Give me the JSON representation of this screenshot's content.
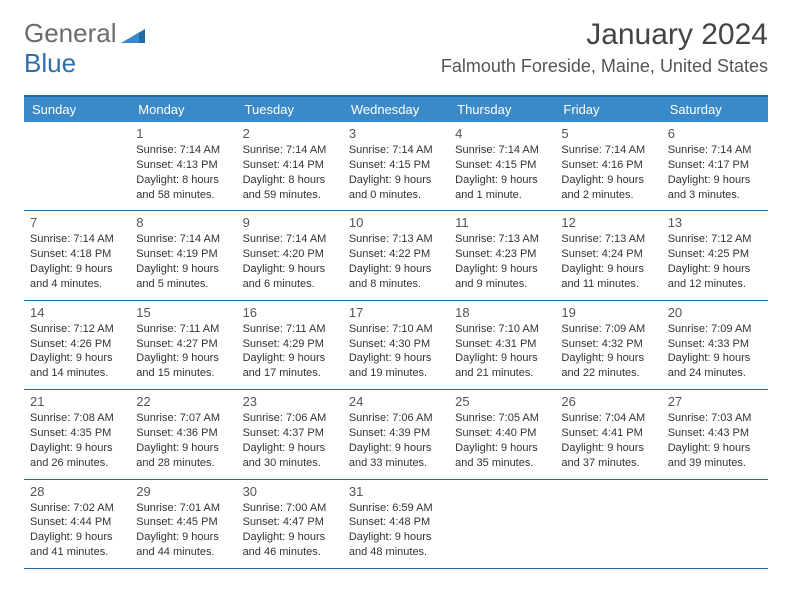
{
  "logo": {
    "part1": "General",
    "part2": "Blue"
  },
  "title": "January 2024",
  "location": "Falmouth Foreside, Maine, United States",
  "colors": {
    "header_bg": "#3a8ac9",
    "header_text": "#ffffff",
    "border": "#1f6aa8",
    "body_text": "#333333",
    "day_number": "#555555",
    "logo_gray": "#6b6b6b",
    "logo_blue": "#2f6fa8",
    "page_bg": "#ffffff"
  },
  "fonts": {
    "title_size": 30,
    "location_size": 18,
    "header_size": 13,
    "day_size": 13,
    "cell_size": 11
  },
  "layout": {
    "columns": 7,
    "rows": 5
  },
  "days_of_week": [
    "Sunday",
    "Monday",
    "Tuesday",
    "Wednesday",
    "Thursday",
    "Friday",
    "Saturday"
  ],
  "weeks": [
    [
      null,
      {
        "n": "1",
        "sr": "Sunrise: 7:14 AM",
        "ss": "Sunset: 4:13 PM",
        "d1": "Daylight: 8 hours",
        "d2": "and 58 minutes."
      },
      {
        "n": "2",
        "sr": "Sunrise: 7:14 AM",
        "ss": "Sunset: 4:14 PM",
        "d1": "Daylight: 8 hours",
        "d2": "and 59 minutes."
      },
      {
        "n": "3",
        "sr": "Sunrise: 7:14 AM",
        "ss": "Sunset: 4:15 PM",
        "d1": "Daylight: 9 hours",
        "d2": "and 0 minutes."
      },
      {
        "n": "4",
        "sr": "Sunrise: 7:14 AM",
        "ss": "Sunset: 4:15 PM",
        "d1": "Daylight: 9 hours",
        "d2": "and 1 minute."
      },
      {
        "n": "5",
        "sr": "Sunrise: 7:14 AM",
        "ss": "Sunset: 4:16 PM",
        "d1": "Daylight: 9 hours",
        "d2": "and 2 minutes."
      },
      {
        "n": "6",
        "sr": "Sunrise: 7:14 AM",
        "ss": "Sunset: 4:17 PM",
        "d1": "Daylight: 9 hours",
        "d2": "and 3 minutes."
      }
    ],
    [
      {
        "n": "7",
        "sr": "Sunrise: 7:14 AM",
        "ss": "Sunset: 4:18 PM",
        "d1": "Daylight: 9 hours",
        "d2": "and 4 minutes."
      },
      {
        "n": "8",
        "sr": "Sunrise: 7:14 AM",
        "ss": "Sunset: 4:19 PM",
        "d1": "Daylight: 9 hours",
        "d2": "and 5 minutes."
      },
      {
        "n": "9",
        "sr": "Sunrise: 7:14 AM",
        "ss": "Sunset: 4:20 PM",
        "d1": "Daylight: 9 hours",
        "d2": "and 6 minutes."
      },
      {
        "n": "10",
        "sr": "Sunrise: 7:13 AM",
        "ss": "Sunset: 4:22 PM",
        "d1": "Daylight: 9 hours",
        "d2": "and 8 minutes."
      },
      {
        "n": "11",
        "sr": "Sunrise: 7:13 AM",
        "ss": "Sunset: 4:23 PM",
        "d1": "Daylight: 9 hours",
        "d2": "and 9 minutes."
      },
      {
        "n": "12",
        "sr": "Sunrise: 7:13 AM",
        "ss": "Sunset: 4:24 PM",
        "d1": "Daylight: 9 hours",
        "d2": "and 11 minutes."
      },
      {
        "n": "13",
        "sr": "Sunrise: 7:12 AM",
        "ss": "Sunset: 4:25 PM",
        "d1": "Daylight: 9 hours",
        "d2": "and 12 minutes."
      }
    ],
    [
      {
        "n": "14",
        "sr": "Sunrise: 7:12 AM",
        "ss": "Sunset: 4:26 PM",
        "d1": "Daylight: 9 hours",
        "d2": "and 14 minutes."
      },
      {
        "n": "15",
        "sr": "Sunrise: 7:11 AM",
        "ss": "Sunset: 4:27 PM",
        "d1": "Daylight: 9 hours",
        "d2": "and 15 minutes."
      },
      {
        "n": "16",
        "sr": "Sunrise: 7:11 AM",
        "ss": "Sunset: 4:29 PM",
        "d1": "Daylight: 9 hours",
        "d2": "and 17 minutes."
      },
      {
        "n": "17",
        "sr": "Sunrise: 7:10 AM",
        "ss": "Sunset: 4:30 PM",
        "d1": "Daylight: 9 hours",
        "d2": "and 19 minutes."
      },
      {
        "n": "18",
        "sr": "Sunrise: 7:10 AM",
        "ss": "Sunset: 4:31 PM",
        "d1": "Daylight: 9 hours",
        "d2": "and 21 minutes."
      },
      {
        "n": "19",
        "sr": "Sunrise: 7:09 AM",
        "ss": "Sunset: 4:32 PM",
        "d1": "Daylight: 9 hours",
        "d2": "and 22 minutes."
      },
      {
        "n": "20",
        "sr": "Sunrise: 7:09 AM",
        "ss": "Sunset: 4:33 PM",
        "d1": "Daylight: 9 hours",
        "d2": "and 24 minutes."
      }
    ],
    [
      {
        "n": "21",
        "sr": "Sunrise: 7:08 AM",
        "ss": "Sunset: 4:35 PM",
        "d1": "Daylight: 9 hours",
        "d2": "and 26 minutes."
      },
      {
        "n": "22",
        "sr": "Sunrise: 7:07 AM",
        "ss": "Sunset: 4:36 PM",
        "d1": "Daylight: 9 hours",
        "d2": "and 28 minutes."
      },
      {
        "n": "23",
        "sr": "Sunrise: 7:06 AM",
        "ss": "Sunset: 4:37 PM",
        "d1": "Daylight: 9 hours",
        "d2": "and 30 minutes."
      },
      {
        "n": "24",
        "sr": "Sunrise: 7:06 AM",
        "ss": "Sunset: 4:39 PM",
        "d1": "Daylight: 9 hours",
        "d2": "and 33 minutes."
      },
      {
        "n": "25",
        "sr": "Sunrise: 7:05 AM",
        "ss": "Sunset: 4:40 PM",
        "d1": "Daylight: 9 hours",
        "d2": "and 35 minutes."
      },
      {
        "n": "26",
        "sr": "Sunrise: 7:04 AM",
        "ss": "Sunset: 4:41 PM",
        "d1": "Daylight: 9 hours",
        "d2": "and 37 minutes."
      },
      {
        "n": "27",
        "sr": "Sunrise: 7:03 AM",
        "ss": "Sunset: 4:43 PM",
        "d1": "Daylight: 9 hours",
        "d2": "and 39 minutes."
      }
    ],
    [
      {
        "n": "28",
        "sr": "Sunrise: 7:02 AM",
        "ss": "Sunset: 4:44 PM",
        "d1": "Daylight: 9 hours",
        "d2": "and 41 minutes."
      },
      {
        "n": "29",
        "sr": "Sunrise: 7:01 AM",
        "ss": "Sunset: 4:45 PM",
        "d1": "Daylight: 9 hours",
        "d2": "and 44 minutes."
      },
      {
        "n": "30",
        "sr": "Sunrise: 7:00 AM",
        "ss": "Sunset: 4:47 PM",
        "d1": "Daylight: 9 hours",
        "d2": "and 46 minutes."
      },
      {
        "n": "31",
        "sr": "Sunrise: 6:59 AM",
        "ss": "Sunset: 4:48 PM",
        "d1": "Daylight: 9 hours",
        "d2": "and 48 minutes."
      },
      null,
      null,
      null
    ]
  ]
}
